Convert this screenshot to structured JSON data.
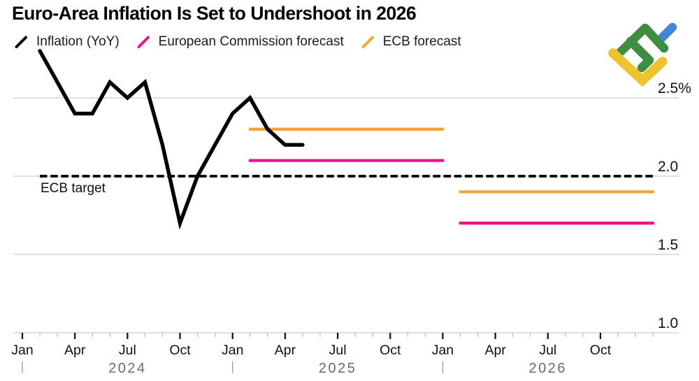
{
  "title": "Euro-Area Inflation Is Set to Undershoot in 2026",
  "legend": {
    "items": [
      {
        "label": "Inflation (YoY)",
        "color": "#000000"
      },
      {
        "label": "European Commission forecast",
        "color": "#EC128D"
      },
      {
        "label": "ECB forecast",
        "color": "#F2A33C"
      }
    ]
  },
  "y_axis": {
    "tick_labels": [
      "2.5%",
      "2.0",
      "1.5",
      "1.0"
    ],
    "tick_values": [
      2.5,
      2.0,
      1.5,
      1.0
    ]
  },
  "x_axis": {
    "quarter_labels": [
      "Jan",
      "Apr",
      "Jul",
      "Oct"
    ],
    "years": [
      "2024",
      "2025",
      "2026"
    ]
  },
  "target_line": {
    "label": "ECB target",
    "value": 2.0,
    "style": "dashed",
    "color": "#000000"
  },
  "logo": {
    "name": "litefinance-logo",
    "colors": {
      "green": "#3E8E41",
      "blue": "#4186D7",
      "yellow": "#EFC330"
    }
  },
  "colors": {
    "grid": "#c9c9c9",
    "tick_major": "#111111",
    "tick_minor": "#b9b9b9",
    "axis_label": "#111111",
    "year_label": "#6a6a6a",
    "year_separator": "#999999"
  },
  "chart_data": {
    "type": "line",
    "title": "Euro-Area Inflation Is Set to Undershoot in 2026",
    "ylabel": "%",
    "ylim": [
      1.0,
      2.9
    ],
    "x_range": [
      "2024-01",
      "2026-12"
    ],
    "grid": "horizontal",
    "legend_position": "top-left",
    "series": [
      {
        "name": "Inflation (YoY)",
        "type": "line",
        "color": "#000000",
        "x": [
          "2024-01",
          "2024-02",
          "2024-03",
          "2024-04",
          "2024-05",
          "2024-06",
          "2024-07",
          "2024-08",
          "2024-09",
          "2024-10",
          "2024-11",
          "2024-12",
          "2025-01",
          "2025-02",
          "2025-03",
          "2025-04"
        ],
        "values": [
          2.8,
          2.6,
          2.4,
          2.4,
          2.6,
          2.5,
          2.6,
          2.2,
          1.7,
          2.0,
          2.2,
          2.4,
          2.5,
          2.3,
          2.2,
          2.2
        ]
      },
      {
        "name": "European Commission forecast",
        "type": "segments",
        "color": "#EC128D",
        "segments": [
          {
            "span": [
              "2025-01",
              "2025-12"
            ],
            "value": 2.1
          },
          {
            "span": [
              "2026-01",
              "2026-12"
            ],
            "value": 1.7
          }
        ]
      },
      {
        "name": "ECB forecast",
        "type": "segments",
        "color": "#F2A33C",
        "segments": [
          {
            "span": [
              "2025-01",
              "2025-12"
            ],
            "value": 2.3
          },
          {
            "span": [
              "2026-01",
              "2026-12"
            ],
            "value": 1.9
          }
        ]
      }
    ],
    "target_line": {
      "label": "ECB target",
      "value": 2.0,
      "style": "dashed",
      "color": "#000000"
    }
  }
}
